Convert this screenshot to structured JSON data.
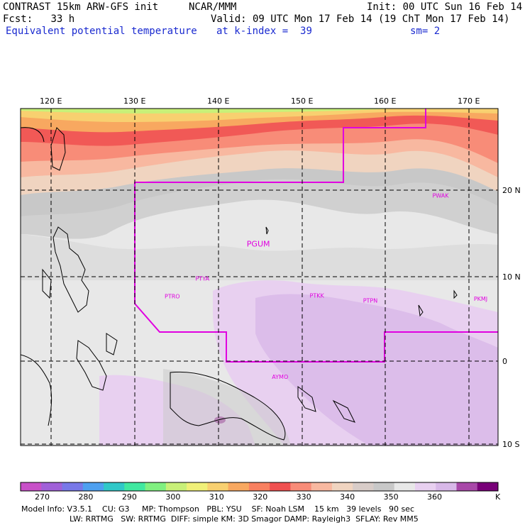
{
  "header": {
    "model": "CONTRAST 15km ARW-GFS init",
    "org": "NCAR/MMM",
    "init": "Init: 00 UTC Sun 16 Feb 14",
    "fcst_label": "Fcst:",
    "fcst_value": "33 h",
    "valid": "Valid: 09 UTC Mon 17 Feb 14 (19 ChT Mon 17 Feb 14)",
    "field": "Equivalent potential temperature",
    "level_label": "at k-index =",
    "level_value": "39",
    "smoothing": "sm= 2"
  },
  "map": {
    "lon_labels": [
      "120 E",
      "130 E",
      "140 E",
      "150 E",
      "160 E",
      "170 E"
    ],
    "lat_labels": [
      "20 N",
      "10 N",
      "0",
      "10 S"
    ],
    "stations": [
      {
        "name": "PWAK",
        "lon": 166.6,
        "lat": 19.3
      },
      {
        "name": "PGUM",
        "lon": 144.8,
        "lat": 13.5
      },
      {
        "name": "PTYA",
        "lon": 138.1,
        "lat": 9.5
      },
      {
        "name": "PTRO",
        "lon": 134.5,
        "lat": 7.4
      },
      {
        "name": "PTKK",
        "lon": 151.8,
        "lat": 7.5
      },
      {
        "name": "PTPN",
        "lon": 158.2,
        "lat": 6.9
      },
      {
        "name": "PKMJ",
        "lon": 171.4,
        "lat": 7.1
      },
      {
        "name": "AYMO",
        "lon": 147.4,
        "lat": -2.1
      }
    ]
  },
  "colorbar": {
    "ticks": [
      "270",
      "280",
      "290",
      "300",
      "310",
      "320",
      "330",
      "340",
      "350",
      "360"
    ],
    "unit": "K",
    "colors": [
      "#c850c8",
      "#a060d8",
      "#7878e8",
      "#4ea0f0",
      "#30c8c8",
      "#40e8a0",
      "#80f080",
      "#c8f078",
      "#f0f078",
      "#f8d070",
      "#f8a860",
      "#f88060",
      "#f05050",
      "#f88c78",
      "#f8b8a0",
      "#f0d4c0",
      "#d8ccc8",
      "#c8c8c8",
      "#e8e8e8",
      "#e8d0f0",
      "#d8b8e8",
      "#a848a8",
      "#780078"
    ]
  },
  "footer": {
    "line1": "Model Info: V3.5.1    CU: G3     MP: Thompson   PBL: YSU    SF: Noah LSM    15 km   39 levels   90 sec",
    "line2": "LW: RRTMG   SW: RRTMG  DIFF: simple KM: 3D Smagor DAMP: Rayleigh3  SFLAY: Rev MM5"
  }
}
